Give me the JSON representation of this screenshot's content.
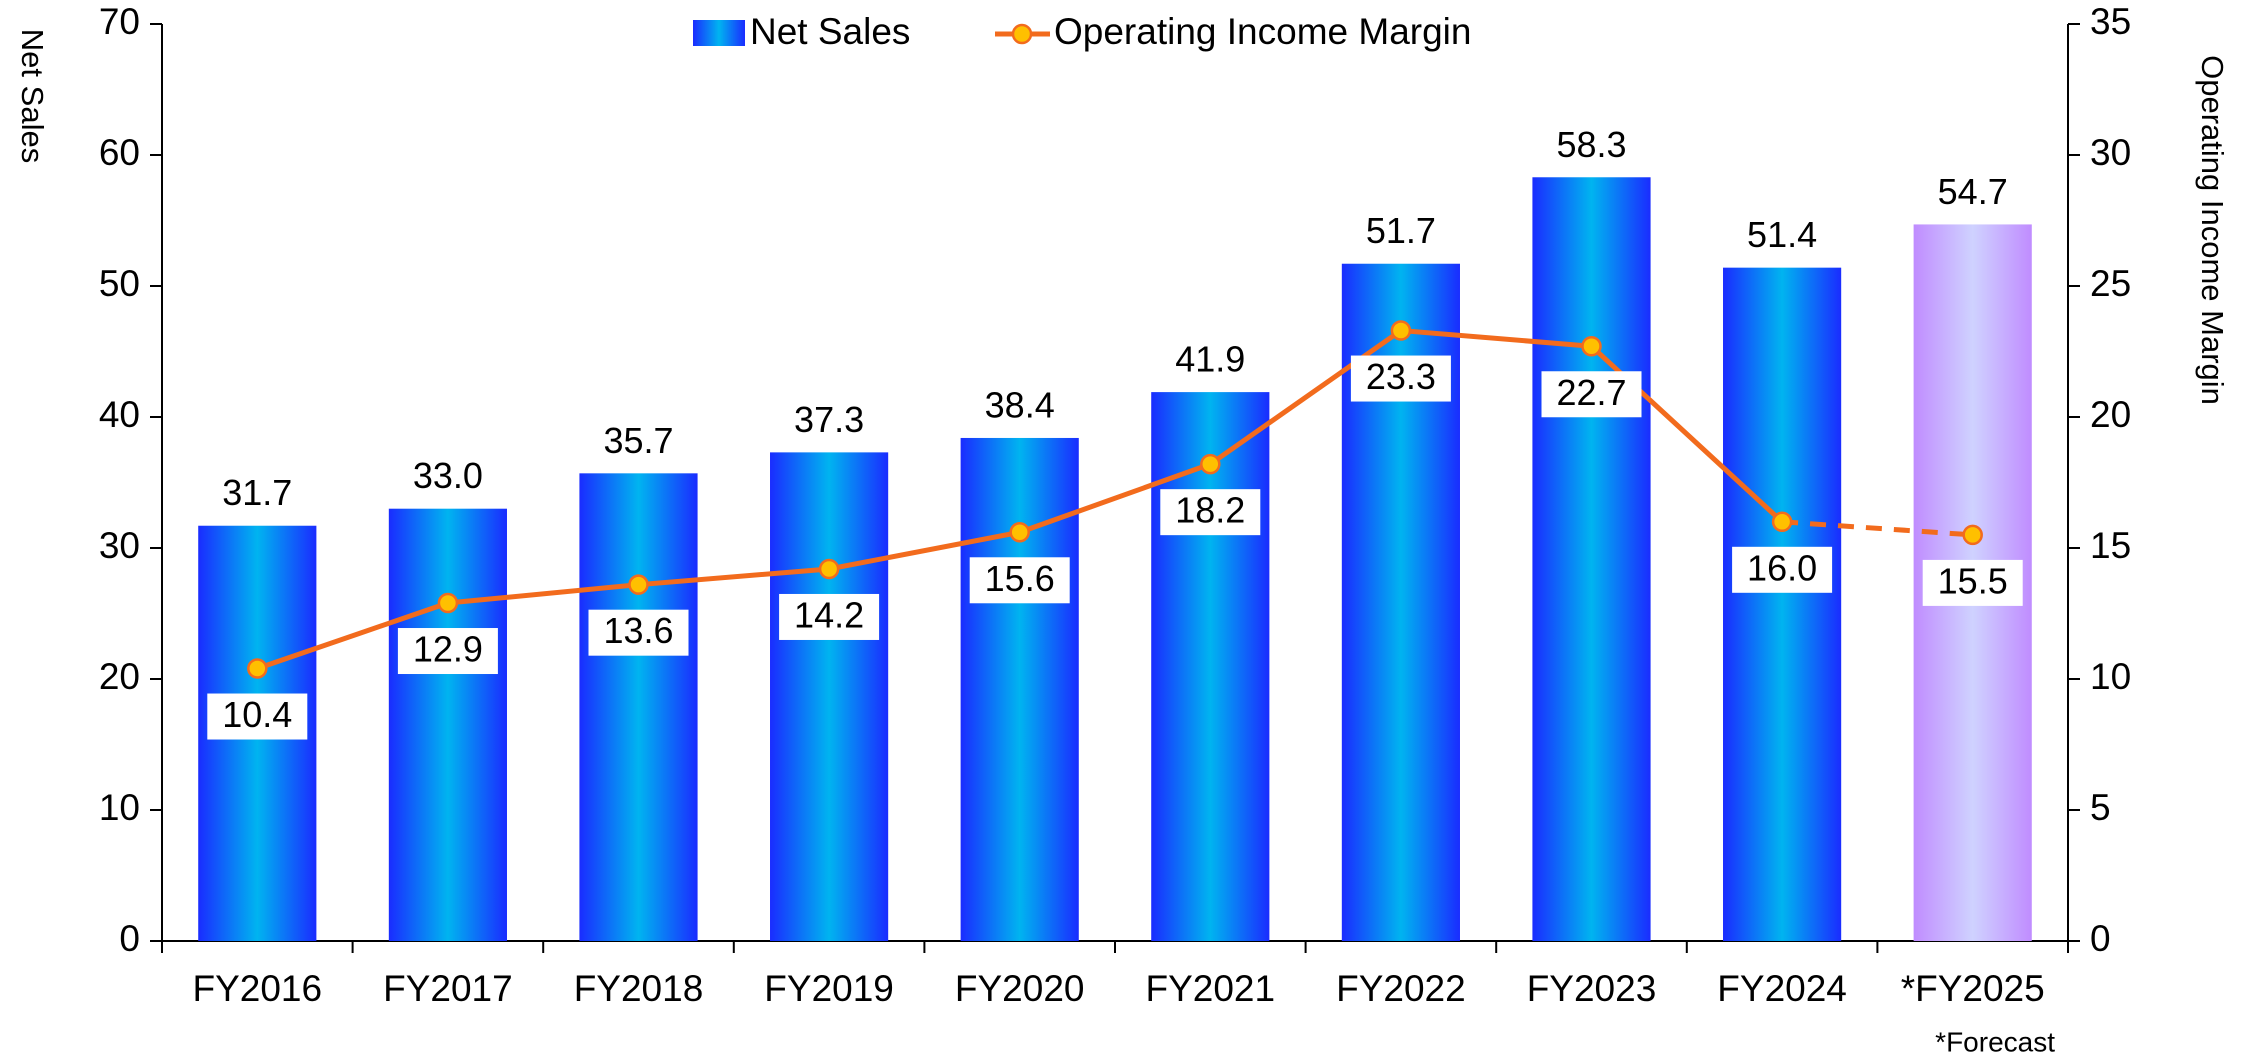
{
  "chart_data": {
    "type": "bar",
    "ylabel": "Net Sales",
    "y2label": "Operating Income Margin",
    "annotation": "*Forecast",
    "categories": [
      "FY2016",
      "FY2017",
      "FY2018",
      "FY2019",
      "FY2020",
      "FY2021",
      "FY2022",
      "FY2023",
      "FY2024",
      "*FY2025"
    ],
    "series": [
      {
        "name": "Net Sales",
        "type": "bar",
        "color": "#1a2cff",
        "forecast_color": "#c08cff",
        "values": [
          31.7,
          33.0,
          35.7,
          37.3,
          38.4,
          41.9,
          51.7,
          58.3,
          51.4,
          54.7
        ],
        "value_labels": [
          "31.7",
          "33.0",
          "35.7",
          "37.3",
          "38.4",
          "41.9",
          "51.7",
          "58.3",
          "51.4",
          "54.7"
        ]
      },
      {
        "name": "Operating Income Margin",
        "type": "line",
        "axis": "y2",
        "color": "#f26b1d",
        "marker_color": "#ffc000",
        "values": [
          10.4,
          12.9,
          13.6,
          14.2,
          15.6,
          18.2,
          23.3,
          22.7,
          16.0,
          15.5
        ],
        "value_labels": [
          "10.4",
          "12.9",
          "13.6",
          "14.2",
          "15.6",
          "18.2",
          "23.3",
          "22.7",
          "16.0",
          "15.5"
        ]
      }
    ],
    "ylim": [
      0,
      70
    ],
    "yticks": [
      0,
      10,
      20,
      30,
      40,
      50,
      60,
      70
    ],
    "y2lim": [
      0,
      35
    ],
    "y2ticks": [
      0,
      5,
      10,
      15,
      20,
      25,
      30,
      35
    ],
    "legend": "top"
  }
}
